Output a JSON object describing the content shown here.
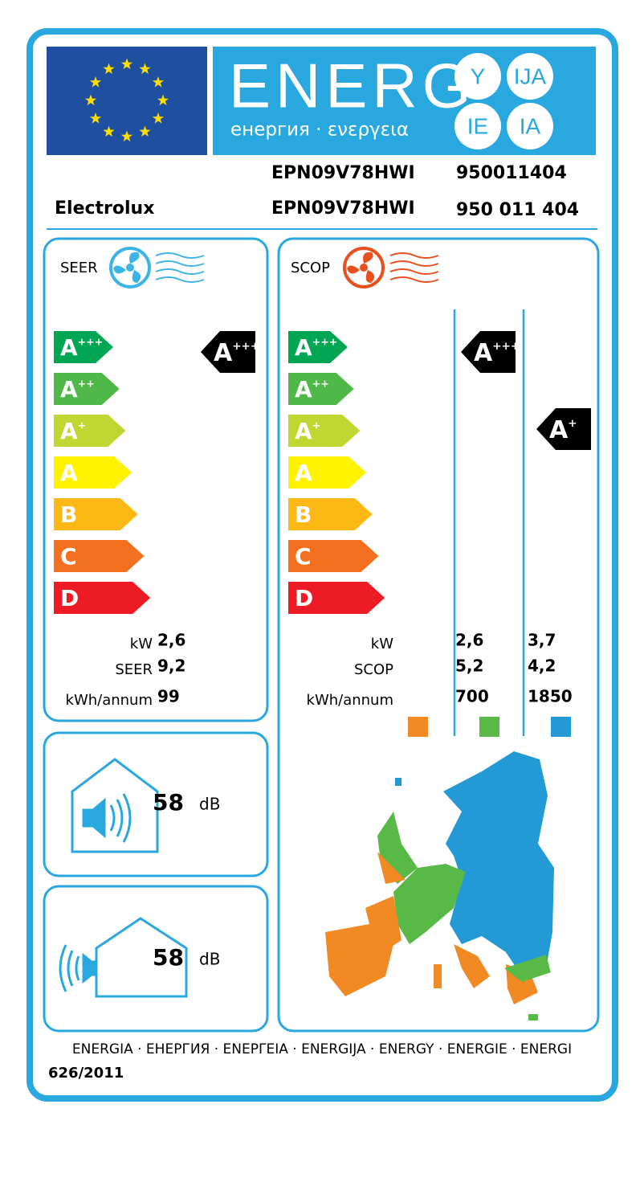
{
  "header": {
    "word": "ENERG",
    "subtitle": "енергия · ενεργεια",
    "suffixes": [
      "Y",
      "IJA",
      "IE",
      "IA"
    ]
  },
  "supplier": "Electrolux",
  "models": {
    "indoor": "EPN09V78HWI",
    "outdoor": "EPN09V78HWI",
    "code_1": "950011404",
    "code_2": "950 011 404"
  },
  "seer": {
    "label": "SEER",
    "classes": [
      {
        "letter": "A",
        "sup": "+++"
      },
      {
        "letter": "A",
        "sup": "++"
      },
      {
        "letter": "A",
        "sup": "+"
      },
      {
        "letter": "A",
        "sup": ""
      },
      {
        "letter": "B",
        "sup": ""
      },
      {
        "letter": "C",
        "sup": ""
      },
      {
        "letter": "D",
        "sup": ""
      }
    ],
    "rating": {
      "letter": "A",
      "sup": "+++"
    },
    "rows": [
      {
        "label": "kW",
        "value": "2,6"
      },
      {
        "label": "SEER",
        "value": "9,2"
      },
      {
        "label": "kWh/annum",
        "value": "99"
      }
    ]
  },
  "scop": {
    "label": "SCOP",
    "classes": [
      {
        "letter": "A",
        "sup": "+++"
      },
      {
        "letter": "A",
        "sup": "++"
      },
      {
        "letter": "A",
        "sup": "+"
      },
      {
        "letter": "A",
        "sup": ""
      },
      {
        "letter": "B",
        "sup": ""
      },
      {
        "letter": "C",
        "sup": ""
      },
      {
        "letter": "D",
        "sup": ""
      }
    ],
    "ratings": [
      {
        "letter": "A",
        "sup": "+++"
      },
      {
        "letter": "A",
        "sup": "+"
      }
    ],
    "rows": [
      {
        "label": "kW",
        "values": [
          "2,6",
          "3,7"
        ]
      },
      {
        "label": "SCOP",
        "values": [
          "5,2",
          "4,2"
        ]
      },
      {
        "label": "kWh/annum",
        "values": [
          "700",
          "1850"
        ]
      }
    ]
  },
  "noise": [
    {
      "value": "58",
      "unit": "dB"
    },
    {
      "value": "58",
      "unit": "dB"
    }
  ],
  "footer": {
    "languages": "ENERGIA · ЕНЕРГИЯ · ΕΝΕΡΓΕΙΑ · ENERGIJA · ENERGY · ENERGIE · ENERGI",
    "regulation": "626/2011"
  }
}
